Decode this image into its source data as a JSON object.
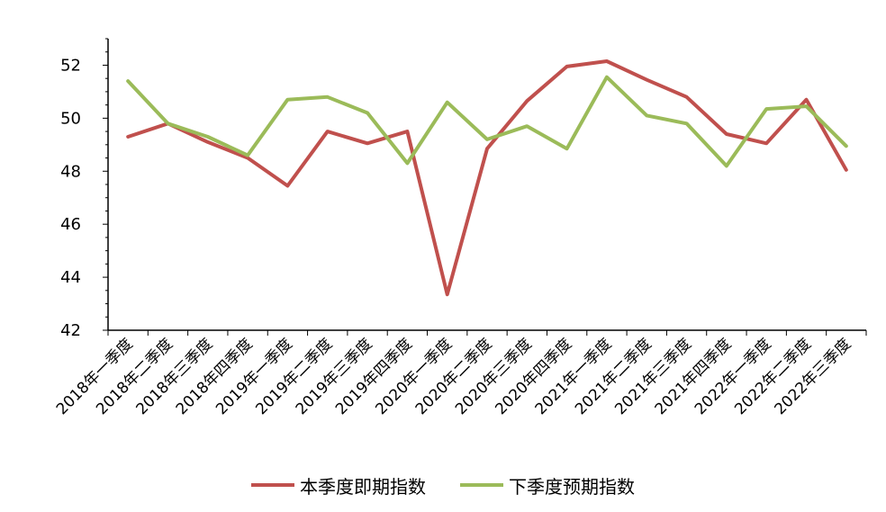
{
  "chart_data": {
    "type": "line",
    "title": "",
    "xlabel": "",
    "ylabel": "",
    "ylim": [
      42,
      53
    ],
    "yticks": [
      42,
      44,
      46,
      48,
      50,
      52
    ],
    "grid": false,
    "legend_position": "bottom",
    "categories": [
      "2018年一季度",
      "2018年二季度",
      "2018年三季度",
      "2018年四季度",
      "2019年一季度",
      "2019年二季度",
      "2019年三季度",
      "2019年四季度",
      "2020年一季度",
      "2020年二季度",
      "2020年三季度",
      "2020年四季度",
      "2021年一季度",
      "2021年二季度",
      "2021年三季度",
      "2021年四季度",
      "2022年一季度",
      "2022年二季度",
      "2022年三季度"
    ],
    "series": [
      {
        "name": "本季度即期指数",
        "color": "#c0504d",
        "values": [
          49.3,
          49.8,
          49.1,
          48.5,
          47.45,
          49.5,
          49.05,
          49.5,
          43.35,
          48.85,
          50.65,
          51.95,
          52.15,
          51.45,
          50.8,
          49.4,
          49.05,
          50.7,
          48.05
        ]
      },
      {
        "name": "下季度预期指数",
        "color": "#9bbb59",
        "values": [
          51.4,
          49.8,
          49.3,
          48.6,
          50.7,
          50.8,
          50.2,
          48.3,
          50.6,
          49.2,
          49.7,
          48.85,
          51.55,
          50.1,
          49.8,
          48.2,
          50.35,
          50.45,
          48.95
        ]
      }
    ]
  }
}
